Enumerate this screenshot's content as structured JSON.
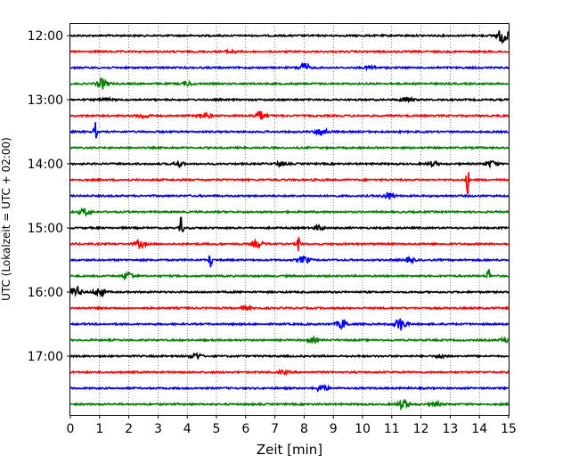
{
  "chart_data": {
    "type": "line",
    "title": "",
    "xlabel": "Zeit  [min]",
    "ylabel": "UTC (Lokalzeit = UTC + 02:00)",
    "xlim": [
      0,
      15
    ],
    "xticks": [
      "0",
      "1",
      "2",
      "3",
      "4",
      "5",
      "6",
      "7",
      "8",
      "9",
      "10",
      "11",
      "12",
      "13",
      "14",
      "15"
    ],
    "yticks": [
      "12:00",
      "13:00",
      "14:00",
      "15:00",
      "16:00",
      "17:00"
    ],
    "grid": "vertical dotted at each minute",
    "trace_interval_min": 15,
    "trace_colors": [
      "#000000",
      "#ff0000",
      "#0000ff",
      "#008000"
    ],
    "traces": [
      {
        "start": "12:00",
        "color": "#000000",
        "events": [
          {
            "t": 14.8,
            "amp": 1.0
          }
        ]
      },
      {
        "start": "12:15",
        "color": "#ff0000",
        "events": [
          {
            "t": 5.5,
            "amp": 0.25
          }
        ]
      },
      {
        "start": "12:30",
        "color": "#0000ff",
        "events": [
          {
            "t": 8.0,
            "amp": 0.6
          },
          {
            "t": 10.3,
            "amp": 0.3
          }
        ]
      },
      {
        "start": "12:45",
        "color": "#008000",
        "events": [
          {
            "t": 1.1,
            "amp": 0.7
          },
          {
            "t": 4.0,
            "amp": 0.25
          }
        ]
      },
      {
        "start": "13:00",
        "color": "#000000",
        "events": [
          {
            "t": 1.2,
            "amp": 0.25
          },
          {
            "t": 11.5,
            "amp": 0.3
          }
        ]
      },
      {
        "start": "13:15",
        "color": "#ff0000",
        "events": [
          {
            "t": 2.5,
            "amp": 0.35
          },
          {
            "t": 4.6,
            "amp": 0.45
          },
          {
            "t": 6.5,
            "amp": 0.6
          }
        ]
      },
      {
        "start": "13:30",
        "color": "#0000ff",
        "events": [
          {
            "t": 0.85,
            "amp": 1.4
          },
          {
            "t": 8.6,
            "amp": 0.55
          }
        ]
      },
      {
        "start": "13:45",
        "color": "#008000",
        "events": []
      },
      {
        "start": "14:00",
        "color": "#000000",
        "events": [
          {
            "t": 3.7,
            "amp": 0.3
          },
          {
            "t": 7.2,
            "amp": 0.3
          },
          {
            "t": 12.4,
            "amp": 0.3
          },
          {
            "t": 14.4,
            "amp": 0.4
          }
        ]
      },
      {
        "start": "14:15",
        "color": "#ff0000",
        "events": [
          {
            "t": 13.6,
            "amp": 2.0
          }
        ]
      },
      {
        "start": "14:30",
        "color": "#0000ff",
        "events": [
          {
            "t": 10.9,
            "amp": 0.5
          }
        ]
      },
      {
        "start": "14:45",
        "color": "#008000",
        "events": [
          {
            "t": 0.5,
            "amp": 0.45
          }
        ]
      },
      {
        "start": "15:00",
        "color": "#000000",
        "events": [
          {
            "t": 3.8,
            "amp": 1.8
          },
          {
            "t": 8.5,
            "amp": 0.3
          }
        ]
      },
      {
        "start": "15:15",
        "color": "#ff0000",
        "events": [
          {
            "t": 2.4,
            "amp": 0.45
          },
          {
            "t": 6.4,
            "amp": 0.45
          },
          {
            "t": 7.8,
            "amp": 1.8
          }
        ]
      },
      {
        "start": "15:30",
        "color": "#0000ff",
        "events": [
          {
            "t": 4.8,
            "amp": 1.4
          },
          {
            "t": 8.0,
            "amp": 0.5
          },
          {
            "t": 11.6,
            "amp": 0.3
          }
        ]
      },
      {
        "start": "15:45",
        "color": "#008000",
        "events": [
          {
            "t": 2.0,
            "amp": 0.55
          },
          {
            "t": 14.3,
            "amp": 1.4
          }
        ]
      },
      {
        "start": "16:00",
        "color": "#000000",
        "events": [
          {
            "t": 0.2,
            "amp": 0.7
          },
          {
            "t": 1.0,
            "amp": 0.6
          }
        ]
      },
      {
        "start": "16:15",
        "color": "#ff0000",
        "events": [
          {
            "t": 6.0,
            "amp": 0.25
          }
        ]
      },
      {
        "start": "16:30",
        "color": "#0000ff",
        "events": [
          {
            "t": 9.3,
            "amp": 0.6
          },
          {
            "t": 11.3,
            "amp": 0.9
          }
        ]
      },
      {
        "start": "16:45",
        "color": "#008000",
        "events": [
          {
            "t": 8.3,
            "amp": 0.3
          },
          {
            "t": 14.9,
            "amp": 0.3
          }
        ]
      },
      {
        "start": "17:00",
        "color": "#000000",
        "events": [
          {
            "t": 4.3,
            "amp": 0.4
          },
          {
            "t": 12.7,
            "amp": 0.25
          }
        ]
      },
      {
        "start": "17:15",
        "color": "#ff0000",
        "events": [
          {
            "t": 7.3,
            "amp": 0.2
          }
        ]
      },
      {
        "start": "17:30",
        "color": "#0000ff",
        "events": [
          {
            "t": 8.6,
            "amp": 0.5
          }
        ]
      },
      {
        "start": "17:45",
        "color": "#008000",
        "events": [
          {
            "t": 11.4,
            "amp": 0.7
          },
          {
            "t": 12.5,
            "amp": 0.25
          }
        ]
      }
    ]
  }
}
